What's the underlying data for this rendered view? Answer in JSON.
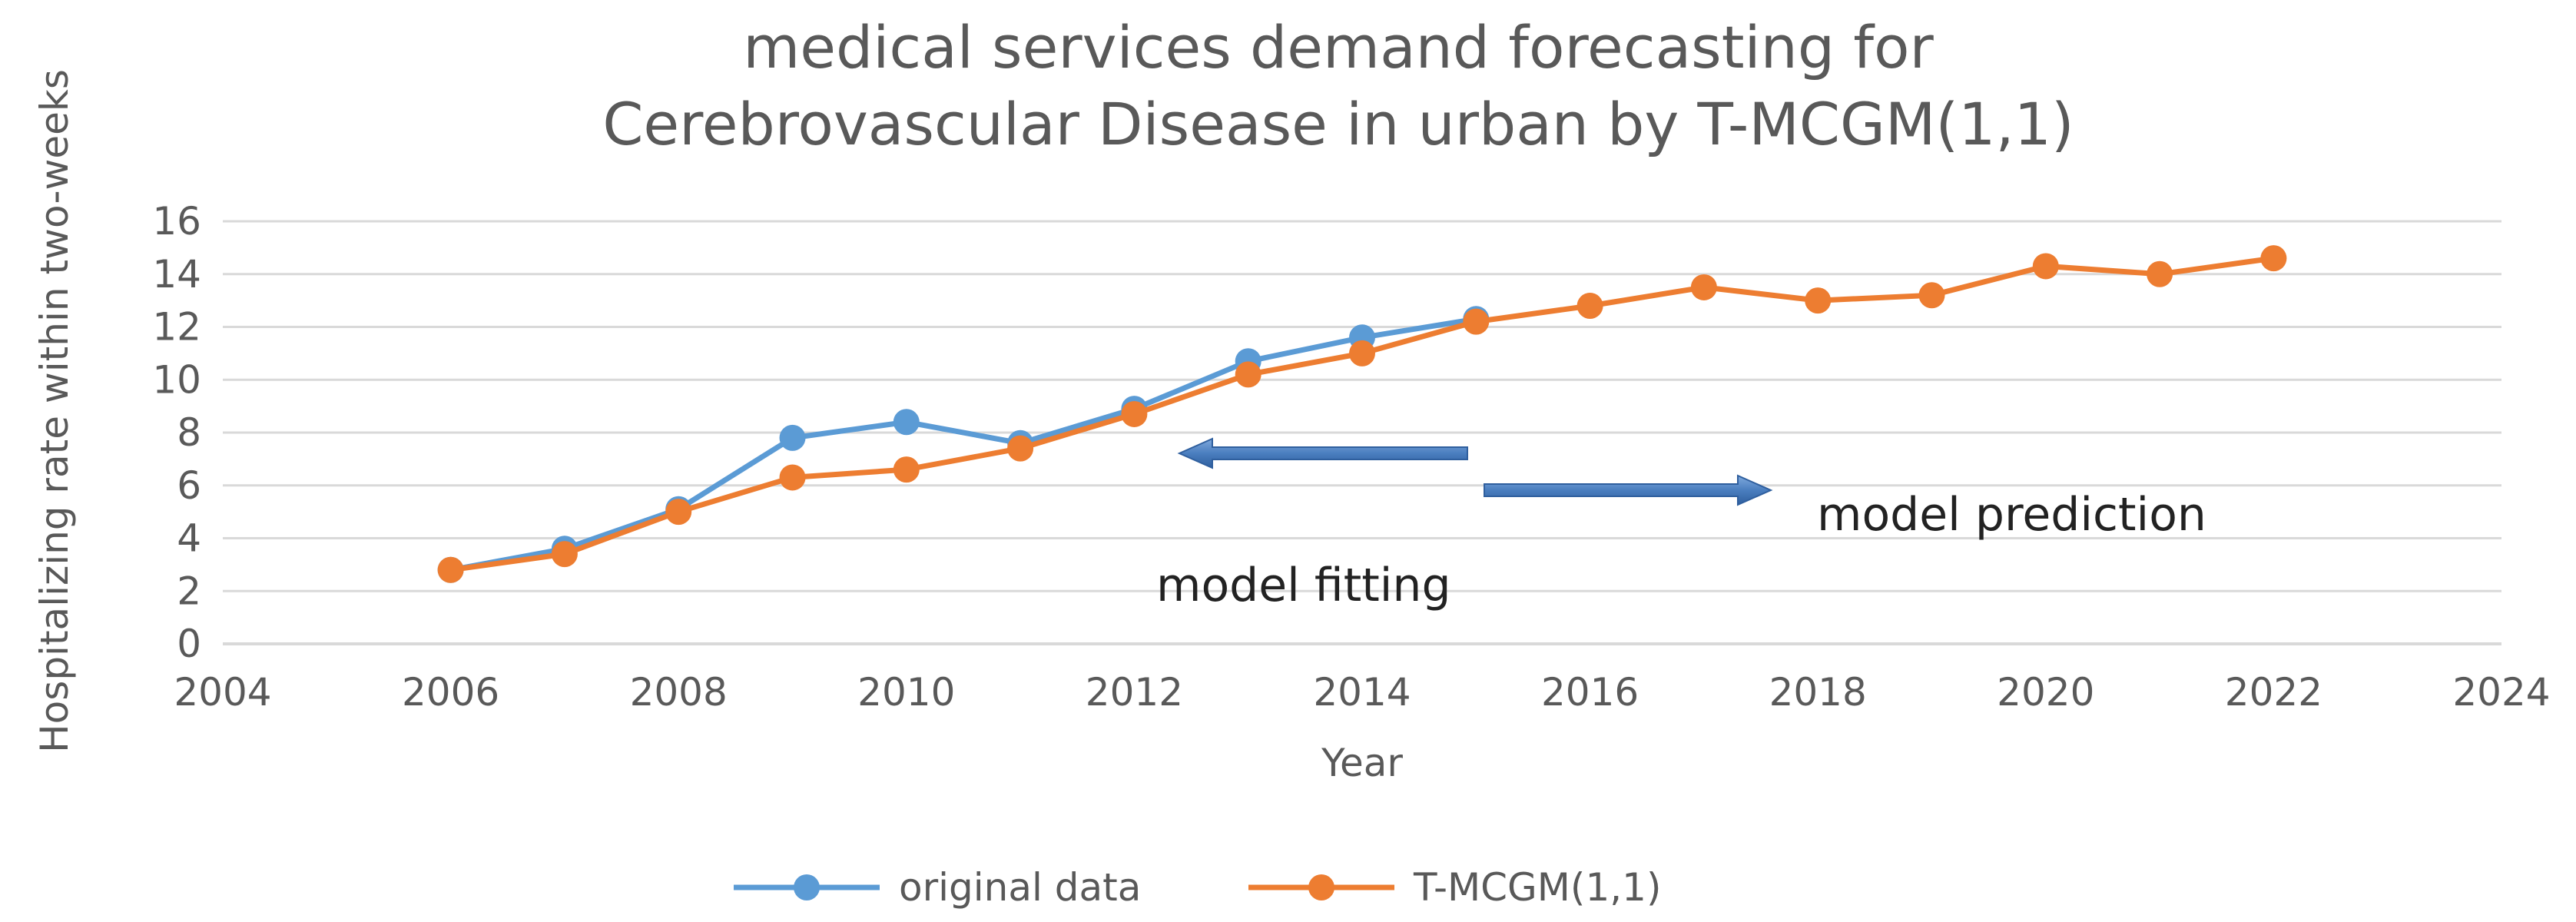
{
  "chart_data": {
    "type": "line",
    "title_lines": [
      "medical services demand forecasting for",
      "Cerebrovascular Disease in urban by T-MCGM(1,1)"
    ],
    "xlabel": "Year",
    "ylabel": "Hospitalizing rate within two-weeks",
    "xlim": [
      2004,
      2024
    ],
    "ylim": [
      0,
      16
    ],
    "x_ticks": [
      "2004",
      "2006",
      "2008",
      "2010",
      "2012",
      "2014",
      "2016",
      "2018",
      "2020",
      "2022",
      "2024"
    ],
    "y_ticks": [
      "0",
      "2",
      "4",
      "6",
      "8",
      "10",
      "12",
      "14",
      "16"
    ],
    "grid": true,
    "legend_position": "bottom",
    "series": [
      {
        "name": "original data",
        "color": "#5B9BD5",
        "x": [
          2006,
          2007,
          2008,
          2009,
          2010,
          2011,
          2012,
          2013,
          2014,
          2015
        ],
        "y": [
          2.8,
          3.6,
          5.1,
          7.8,
          8.4,
          7.6,
          8.9,
          10.7,
          11.6,
          12.3
        ]
      },
      {
        "name": "T-MCGM(1,1)",
        "color": "#ED7D31",
        "x": [
          2006,
          2007,
          2008,
          2009,
          2010,
          2011,
          2012,
          2013,
          2014,
          2015,
          2016,
          2017,
          2018,
          2019,
          2020,
          2021,
          2022
        ],
        "y": [
          2.8,
          3.4,
          5.0,
          6.3,
          6.6,
          7.4,
          8.7,
          10.2,
          11.0,
          12.2,
          12.8,
          13.5,
          13.0,
          13.2,
          14.3,
          14.0,
          14.6
        ]
      }
    ],
    "annotations": [
      {
        "text": "model fitting",
        "arrow": "left"
      },
      {
        "text": "model prediction",
        "arrow": "right"
      }
    ]
  }
}
